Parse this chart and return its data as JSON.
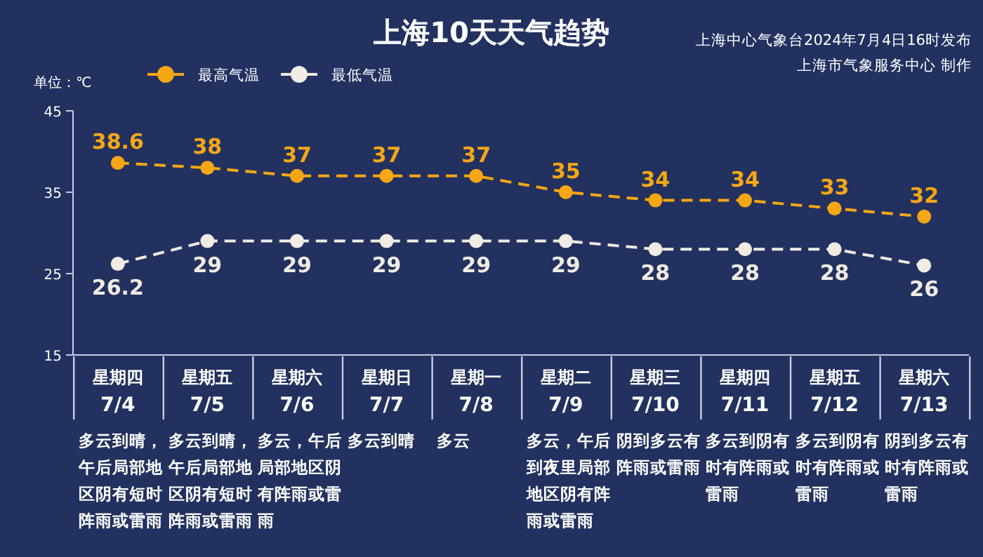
{
  "chart_data": {
    "type": "line",
    "title": "上海10天天气趋势",
    "ylabel": "单位：℃",
    "categories": [
      "星期四\n7/4",
      "星期五\n7/5",
      "星期六\n7/6",
      "星期日\n7/7",
      "星期一\n7/8",
      "星期二\n7/9",
      "星期三\n7/10",
      "星期四\n7/11",
      "星期五\n7/12",
      "星期六\n7/13"
    ],
    "series": [
      {
        "name": "最高气温",
        "color": "#f5a714",
        "values": [
          38.6,
          38,
          37,
          37,
          37,
          35,
          34,
          34,
          33,
          32
        ]
      },
      {
        "name": "最低气温",
        "color": "#f0ece4",
        "values": [
          26.2,
          29,
          29,
          29,
          29,
          29,
          28,
          28,
          28,
          26
        ]
      }
    ],
    "ylim": [
      15,
      45
    ],
    "yticks": [
      15,
      25,
      35,
      45
    ],
    "grid": false,
    "legend": "top left",
    "marker": "circle",
    "line_style": "dashed",
    "data_labels": true,
    "annotations": [
      "上海中心气象台2024年7月4日16时发布",
      "上海市气象服务中心 制作",
      "多云到晴，午后局部地区阴有短时阵雨或雷雨",
      "多云到晴，午后局部地区阴有短时阵雨或雷雨",
      "多云，午后局部地区阴有阵雨或雷雨",
      "多云到晴",
      "多云",
      "多云，午后到夜里局部地区阴有阵雨或雷雨",
      "阴到多云有阵雨或雷雨",
      "多云到阴有时有阵雨或雷雨",
      "多云到阴有时有阵雨或雷雨",
      "阴到多云有时有阵雨或雷雨"
    ]
  }
}
